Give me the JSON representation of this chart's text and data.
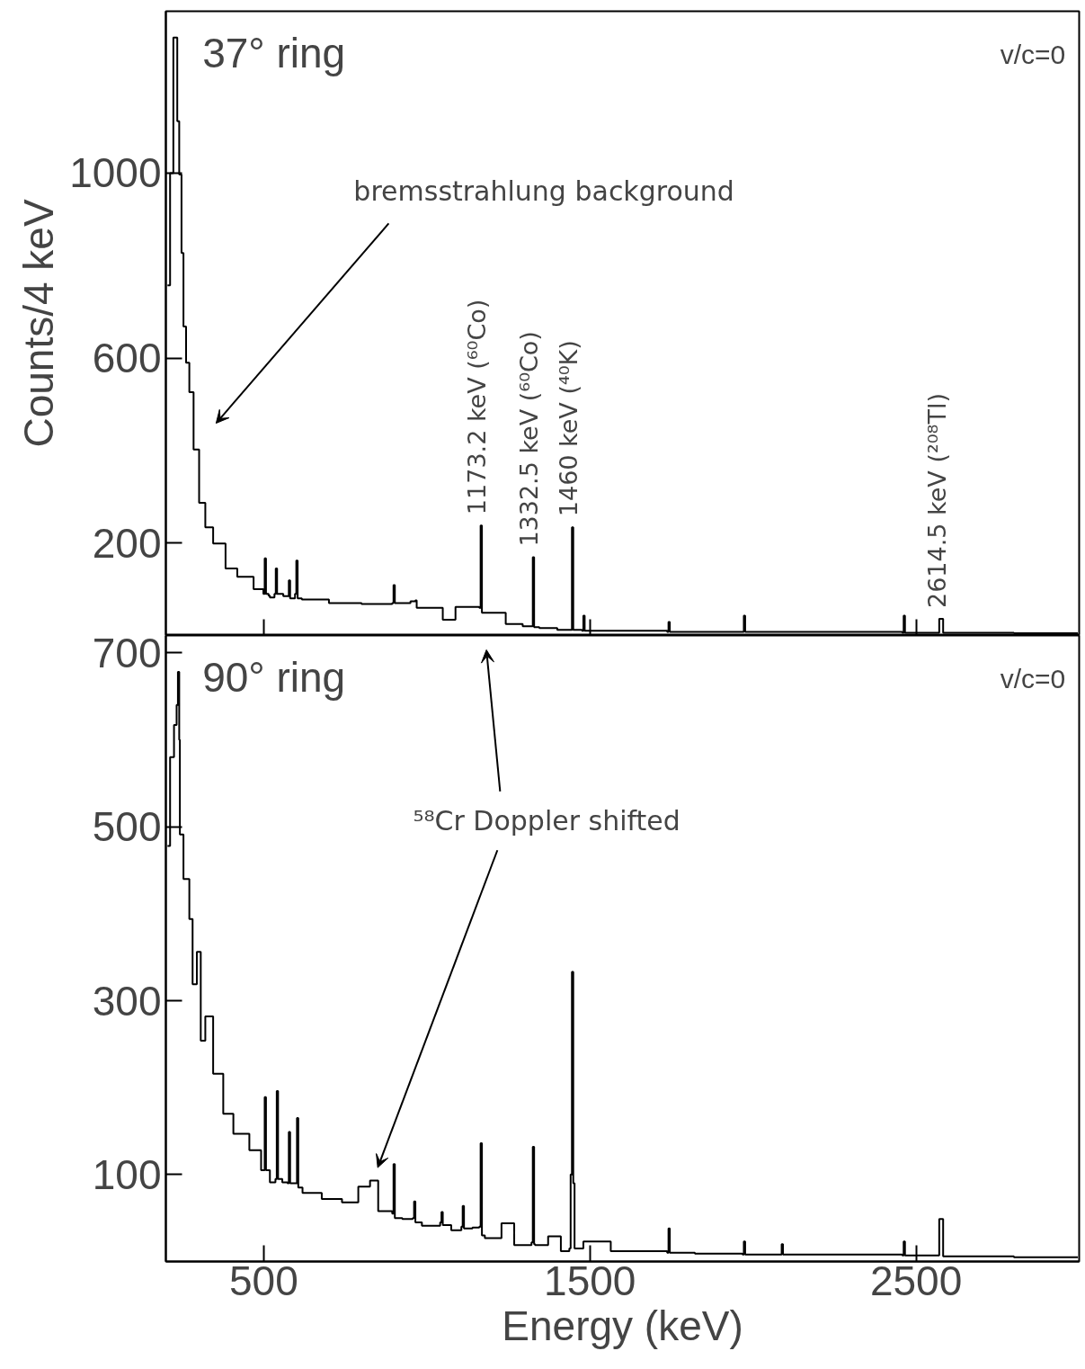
{
  "chart_data": [
    {
      "type": "step",
      "color": "#000000",
      "ylabel": "Counts/4 keV",
      "tick_labels": "y",
      "xlim": [
        200,
        3000
      ],
      "xticks": [
        500,
        1500,
        2500
      ],
      "ylim": [
        0,
        1350
      ],
      "yticks": [
        200,
        600,
        1000
      ],
      "x": [
        205,
        213,
        223,
        235,
        241,
        248,
        254,
        262,
        272,
        285,
        302,
        321,
        345,
        383,
        419,
        469,
        499,
        503,
        507,
        515,
        519,
        533,
        537,
        541,
        560,
        577,
        581,
        596,
        600,
        604,
        617,
        700,
        800,
        894,
        898,
        902,
        950,
        965,
        969,
        1049,
        1088,
        1126,
        1161,
        1165,
        1169,
        1178,
        1242,
        1294,
        1321,
        1325,
        1329,
        1345,
        1400,
        1441,
        1445,
        1449,
        1476,
        1480,
        1484,
        1564,
        1737,
        1741,
        1745,
        1968,
        1972,
        1976,
        2070,
        2458,
        2462,
        2466,
        2567,
        2571,
        2579,
        2583,
        2800,
        2996
      ],
      "values": [
        757,
        1000,
        1293,
        1112,
        997,
        827,
        668,
        590,
        526,
        402,
        287,
        234,
        199,
        145,
        127,
        100,
        90,
        167,
        90,
        86,
        82,
        90,
        145,
        90,
        85,
        119,
        80,
        90,
        162,
        80,
        78,
        70,
        68,
        70,
        109,
        70,
        74,
        76,
        60,
        34,
        62,
        62,
        60,
        238,
        49,
        49,
        25,
        20,
        20,
        169,
        18,
        16,
        12,
        12,
        234,
        12,
        10,
        43,
        10,
        10,
        8,
        29,
        8,
        8,
        43,
        8,
        8,
        6,
        43,
        6,
        6,
        36,
        36,
        6,
        5,
        5
      ],
      "annotations": [
        "37° ring",
        "v/c=0",
        "bremsstrahlung background",
        {
          "text": "1173.2 keV (⁶⁰Co)",
          "x": 1165,
          "y": 238
        },
        {
          "text": "1332.5 keV (⁶⁰Co)",
          "x": 1325,
          "y": 169
        },
        {
          "text": "1460 keV (⁴⁰K)",
          "x": 1445,
          "y": 234
        },
        {
          "text": "2614.5 keV (²⁰⁸Tl)",
          "x": 2575,
          "y": 36
        }
      ]
    },
    {
      "type": "step",
      "color": "#000000",
      "xlabel": "Energy (keV)",
      "xlim": [
        200,
        3000
      ],
      "xticks": [
        500,
        1500,
        2500
      ],
      "ylim": [
        0,
        720
      ],
      "yticks": [
        100,
        300,
        500,
        700
      ],
      "x": [
        205,
        213,
        225,
        233,
        237,
        241,
        243,
        254,
        272,
        282,
        295,
        307,
        321,
        345,
        376,
        407,
        456,
        492,
        499,
        503,
        507,
        519,
        536,
        540,
        544,
        557,
        573,
        577,
        581,
        598,
        602,
        606,
        619,
        678,
        740,
        790,
        826,
        851,
        894,
        898,
        902,
        925,
        957,
        961,
        965,
        985,
        1041,
        1045,
        1049,
        1075,
        1106,
        1110,
        1114,
        1140,
        1161,
        1165,
        1169,
        1178,
        1229,
        1268,
        1321,
        1325,
        1329,
        1332,
        1372,
        1411,
        1437,
        1441,
        1445,
        1449,
        1453,
        1480,
        1564,
        1737,
        1741,
        1745,
        1822,
        1968,
        1972,
        1976,
        2084,
        2088,
        2092,
        2172,
        2458,
        2462,
        2466,
        2567,
        2571,
        2579,
        2583,
        2800,
        2996
      ],
      "values": [
        478,
        580,
        617,
        640,
        678,
        600,
        491,
        440,
        394,
        319,
        356,
        254,
        282,
        216,
        170,
        147,
        128,
        105,
        105,
        189,
        105,
        91,
        95,
        196,
        95,
        91,
        90,
        149,
        90,
        90,
        165,
        85,
        79,
        72,
        68,
        86,
        93,
        58,
        55,
        112,
        50,
        49,
        50,
        69,
        45,
        41,
        45,
        57,
        42,
        36,
        40,
        64,
        38,
        39,
        40,
        136,
        30,
        27,
        44,
        19,
        22,
        132,
        20,
        19,
        29,
        12,
        15,
        100,
        333,
        90,
        15,
        23,
        12,
        10,
        38,
        10,
        9,
        8,
        23,
        8,
        8,
        20,
        8,
        8,
        7,
        23,
        7,
        7,
        49,
        49,
        6,
        5,
        5
      ],
      "annotations": [
        "90° ring",
        "v/c=0",
        "⁵⁸Cr Doppler shifted"
      ]
    }
  ]
}
